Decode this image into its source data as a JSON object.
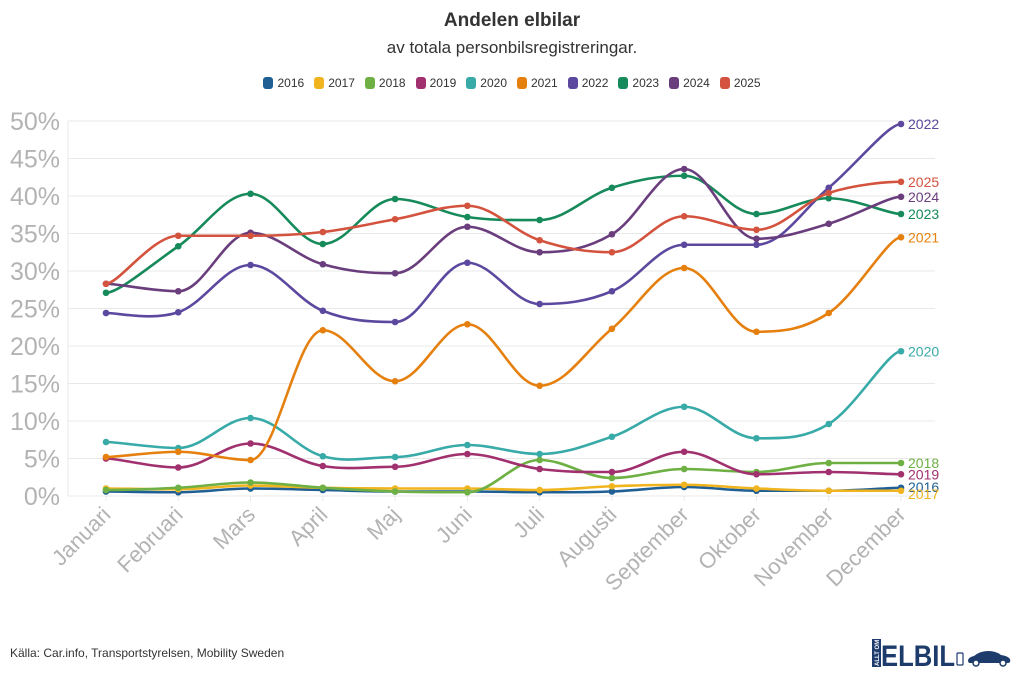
{
  "chart_data": {
    "type": "line",
    "title": "Andelen elbilar",
    "subtitle": "av totala personbilsregistreringar.",
    "xlabel": "",
    "ylabel": "",
    "ylim": [
      0,
      50
    ],
    "yticks": [
      "0%",
      "5%",
      "10%",
      "15%",
      "20%",
      "25%",
      "30%",
      "35%",
      "40%",
      "45%",
      "50%"
    ],
    "ytick_values": [
      0,
      5,
      10,
      15,
      20,
      25,
      30,
      35,
      40,
      45,
      50
    ],
    "grid": true,
    "legend_position": "top-center",
    "categories": [
      "Januari",
      "Februari",
      "Mars",
      "April",
      "Maj",
      "Juni",
      "Juli",
      "Augusti",
      "September",
      "Oktober",
      "November",
      "December"
    ],
    "series": [
      {
        "name": "2016",
        "color": "#1f5f94",
        "values": [
          0.6,
          0.5,
          1.0,
          0.8,
          0.6,
          0.6,
          0.5,
          0.6,
          1.2,
          0.7,
          0.7,
          1.1
        ]
      },
      {
        "name": "2017",
        "color": "#f0b41e",
        "values": [
          1.0,
          0.9,
          1.4,
          1.1,
          1.0,
          1.0,
          0.8,
          1.3,
          1.5,
          1.0,
          0.7,
          0.7
        ]
      },
      {
        "name": "2018",
        "color": "#6eb043",
        "values": [
          0.8,
          1.1,
          1.8,
          1.1,
          0.6,
          0.5,
          4.8,
          2.4,
          3.6,
          3.2,
          4.4,
          4.4
        ]
      },
      {
        "name": "2019",
        "color": "#a0306e",
        "values": [
          5.0,
          3.8,
          7.0,
          4.0,
          3.9,
          5.6,
          3.6,
          3.2,
          5.9,
          2.9,
          3.2,
          2.9
        ]
      },
      {
        "name": "2020",
        "color": "#38aaa8",
        "values": [
          7.2,
          6.4,
          10.4,
          5.3,
          5.2,
          6.8,
          5.6,
          7.9,
          11.9,
          7.7,
          9.6,
          19.3
        ]
      },
      {
        "name": "2021",
        "color": "#e5800f",
        "values": [
          5.2,
          5.9,
          4.8,
          22.1,
          15.3,
          22.9,
          14.7,
          22.3,
          30.4,
          21.9,
          24.4,
          34.5
        ]
      },
      {
        "name": "2022",
        "color": "#5c489e",
        "values": [
          24.4,
          24.5,
          30.8,
          24.7,
          23.2,
          31.1,
          25.6,
          27.3,
          33.5,
          33.5,
          41.1,
          49.6
        ]
      },
      {
        "name": "2023",
        "color": "#168a5a",
        "values": [
          27.1,
          33.3,
          40.3,
          33.6,
          39.6,
          37.2,
          36.8,
          41.1,
          42.7,
          37.6,
          39.7,
          37.6
        ]
      },
      {
        "name": "2024",
        "color": "#6a3d7d",
        "values": [
          28.3,
          27.3,
          35.1,
          30.9,
          29.7,
          35.9,
          32.5,
          34.9,
          43.6,
          34.3,
          36.3,
          39.9
        ]
      },
      {
        "name": "2025",
        "color": "#d4533e",
        "values": [
          28.3,
          34.7,
          34.7,
          35.2,
          36.9,
          38.7,
          34.1,
          32.5,
          37.3,
          35.5,
          40.4,
          41.9
        ]
      }
    ],
    "end_labels": [
      "2022",
      "2025",
      "2024",
      "2023",
      "2021",
      "2020",
      "2018",
      "2019",
      "2016",
      "2017"
    ]
  },
  "footer": {
    "source": "Källa: Car.info, Transportstyrelsen, Mobility Sweden",
    "logo_text": "ELBIL",
    "logo_side_text": "ALLT OM"
  },
  "colors": {
    "grid": "#e8e8e8",
    "axis_text": "#b3b3b3",
    "text": "#333333",
    "logo": "#1d3b6b"
  }
}
